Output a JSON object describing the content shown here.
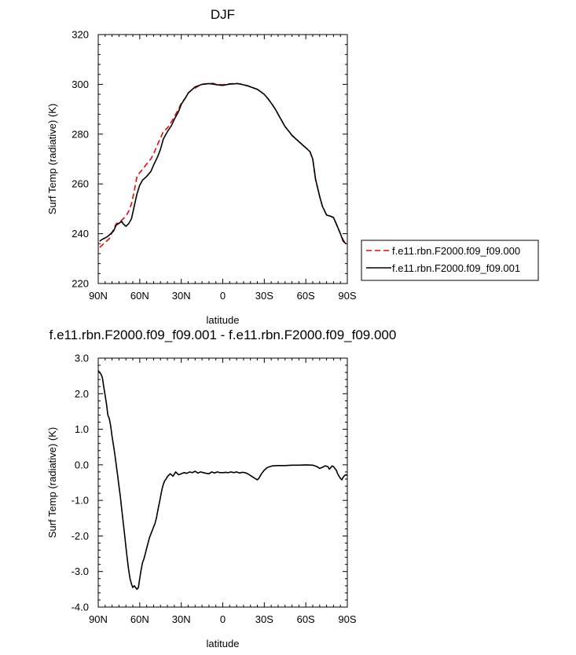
{
  "chart_data": [
    {
      "type": "line",
      "title": "DJF",
      "xlabel": "latitude",
      "ylabel": "Surf Temp (radiative) (K)",
      "xlim": [
        90,
        -90
      ],
      "ylim": [
        220,
        320
      ],
      "x_ticks": [
        90,
        60,
        30,
        0,
        -30,
        -60,
        -90
      ],
      "x_tick_labels": [
        "90N",
        "60N",
        "30N",
        "0",
        "30S",
        "60S",
        "90S"
      ],
      "y_ticks": [
        220,
        240,
        260,
        280,
        300,
        320
      ],
      "y_tick_labels": [
        "220",
        "240",
        "260",
        "280",
        "300",
        "320"
      ],
      "grid": false,
      "legend_position": "right",
      "series": [
        {
          "name": "f.e11.rbn.F2000.f09_f09.000",
          "color": "#ff0000",
          "dash": "dashed",
          "x": [
            89,
            86,
            82,
            80,
            77,
            74,
            72,
            70,
            68,
            66,
            64,
            62,
            60,
            57,
            55,
            52,
            50,
            47,
            45,
            43,
            40,
            37,
            35,
            32,
            30,
            27,
            25,
            22,
            20,
            17,
            15,
            12,
            10,
            7,
            5,
            2,
            0,
            -3,
            -5,
            -8,
            -10,
            -13,
            -15,
            -18,
            -20,
            -25,
            -30,
            -33,
            -35,
            -38,
            -40,
            -43,
            -45,
            -48,
            -50,
            -53,
            -55,
            -58,
            -60,
            -63,
            -65,
            -67,
            -70,
            -72,
            -75,
            -78,
            -80,
            -82,
            -85,
            -87,
            -89
          ],
          "y": [
            234.5,
            236,
            238,
            240.5,
            244,
            245,
            246,
            247,
            249,
            252,
            257,
            263,
            264.5,
            266.5,
            268,
            270,
            272,
            276,
            278.5,
            281,
            282.5,
            285,
            287,
            290,
            292.5,
            294.5,
            296.5,
            298,
            298.5,
            299.5,
            300,
            300.2,
            300.3,
            300.4,
            300.1,
            299.9,
            299.8,
            300.1,
            300.2,
            300.3,
            300.4,
            300.1,
            299.8,
            299.4,
            299,
            298,
            296,
            294,
            292.5,
            290,
            288,
            285,
            283,
            281,
            279.5,
            278,
            277,
            275.5,
            274.5,
            273,
            270,
            262,
            255,
            251,
            247.5,
            247,
            246.5,
            244,
            240,
            237.5,
            236
          ]
        },
        {
          "name": "f.e11.rbn.F2000.f09_f09.001",
          "color": "#000000",
          "dash": "solid",
          "x": [
            89,
            87,
            85,
            83,
            81,
            79,
            77,
            75,
            73,
            72,
            70,
            68,
            66,
            64,
            62,
            60,
            58,
            55,
            52,
            50,
            47,
            45,
            43,
            40,
            37,
            35,
            32,
            30,
            27,
            25,
            22,
            20,
            17,
            15,
            12,
            10,
            7,
            5,
            2,
            0,
            -3,
            -5,
            -8,
            -10,
            -13,
            -15,
            -18,
            -20,
            -25,
            -30,
            -33,
            -35,
            -38,
            -40,
            -43,
            -45,
            -48,
            -50,
            -53,
            -55,
            -58,
            -60,
            -63,
            -65,
            -67,
            -70,
            -72,
            -75,
            -78,
            -80,
            -82,
            -85,
            -87,
            -89
          ],
          "y": [
            237,
            237.8,
            238.3,
            239,
            240,
            241,
            243.5,
            244.2,
            245,
            244,
            243,
            244,
            246,
            251,
            256,
            259.5,
            261.5,
            263,
            265,
            267.5,
            271,
            274,
            278,
            281,
            283.5,
            286,
            289,
            292,
            294.5,
            296.5,
            298,
            299,
            299.6,
            300,
            300.2,
            300.3,
            300.1,
            299.9,
            299.7,
            299.6,
            299.9,
            300.1,
            300.2,
            300.3,
            300.1,
            299.8,
            299.4,
            299,
            298,
            296,
            294,
            292.5,
            290,
            288,
            285,
            283,
            281,
            279.5,
            278,
            277,
            275.5,
            274.5,
            273,
            270,
            262,
            255,
            251,
            247.5,
            247,
            246.5,
            244,
            240,
            237,
            236
          ]
        }
      ]
    },
    {
      "type": "line",
      "title": "f.e11.rbn.F2000.f09_f09.001 - f.e11.rbn.F2000.f09_f09.000",
      "xlabel": "latitude",
      "ylabel": "Surf Temp (radiative) (K)",
      "xlim": [
        90,
        -90
      ],
      "ylim": [
        -4.0,
        3.0
      ],
      "x_ticks": [
        90,
        60,
        30,
        0,
        -30,
        -60,
        -90
      ],
      "x_tick_labels": [
        "90N",
        "60N",
        "30N",
        "0",
        "30S",
        "60S",
        "90S"
      ],
      "y_ticks": [
        3.0,
        2.0,
        1.0,
        0.0,
        -1.0,
        -2.0,
        -3.0,
        -4.0
      ],
      "y_tick_labels": [
        "3.0",
        "2.0",
        "1.0",
        "0.0",
        "-1.0",
        "-2.0",
        "-3.0",
        "-4.0"
      ],
      "grid": false,
      "series": [
        {
          "color": "#000000",
          "dash": "solid",
          "x": [
            90,
            88,
            87,
            86,
            85,
            84,
            83,
            82,
            81,
            80,
            79,
            78,
            77,
            76,
            75,
            74,
            73,
            72,
            71,
            70,
            69,
            68,
            67,
            66,
            65,
            64,
            63,
            62,
            61,
            60,
            59,
            58,
            57,
            56,
            55,
            54,
            53,
            52,
            51,
            50,
            49,
            48,
            47,
            46,
            45,
            44,
            43,
            42,
            41,
            40,
            38,
            36,
            34,
            32,
            30,
            28,
            26,
            24,
            22,
            20,
            18,
            16,
            14,
            12,
            10,
            8,
            6,
            4,
            2,
            0,
            -2,
            -4,
            -6,
            -8,
            -10,
            -12,
            -14,
            -16,
            -18,
            -20,
            -22,
            -24,
            -25,
            -26,
            -28,
            -30,
            -32,
            -34,
            -36,
            -40,
            -45,
            -50,
            -55,
            -60,
            -65,
            -68,
            -70,
            -72,
            -74,
            -76,
            -77,
            -78,
            -79,
            -80,
            -81,
            -82,
            -83,
            -84,
            -85,
            -86,
            -87,
            -88,
            -89,
            -90
          ],
          "y": [
            2.65,
            2.55,
            2.45,
            2.2,
            1.95,
            1.7,
            1.4,
            1.3,
            1.1,
            0.8,
            0.55,
            0.3,
            0.0,
            -0.3,
            -0.6,
            -0.9,
            -1.25,
            -1.6,
            -1.95,
            -2.3,
            -2.65,
            -2.95,
            -3.2,
            -3.35,
            -3.45,
            -3.4,
            -3.45,
            -3.5,
            -3.45,
            -3.2,
            -2.95,
            -2.75,
            -2.65,
            -2.5,
            -2.35,
            -2.2,
            -2.05,
            -1.95,
            -1.85,
            -1.75,
            -1.65,
            -1.5,
            -1.3,
            -1.1,
            -0.9,
            -0.7,
            -0.55,
            -0.45,
            -0.4,
            -0.33,
            -0.25,
            -0.32,
            -0.2,
            -0.28,
            -0.25,
            -0.22,
            -0.24,
            -0.2,
            -0.22,
            -0.18,
            -0.23,
            -0.2,
            -0.22,
            -0.24,
            -0.25,
            -0.2,
            -0.23,
            -0.2,
            -0.22,
            -0.22,
            -0.21,
            -0.22,
            -0.2,
            -0.22,
            -0.2,
            -0.23,
            -0.21,
            -0.22,
            -0.25,
            -0.3,
            -0.35,
            -0.4,
            -0.42,
            -0.38,
            -0.25,
            -0.15,
            -0.08,
            -0.05,
            -0.03,
            -0.02,
            -0.02,
            -0.01,
            -0.01,
            0.0,
            -0.01,
            -0.05,
            -0.1,
            -0.07,
            -0.03,
            -0.05,
            -0.12,
            -0.08,
            -0.03,
            -0.05,
            -0.1,
            -0.15,
            -0.25,
            -0.32,
            -0.38,
            -0.42,
            -0.35,
            -0.3,
            -0.28,
            -0.3
          ]
        }
      ]
    }
  ]
}
